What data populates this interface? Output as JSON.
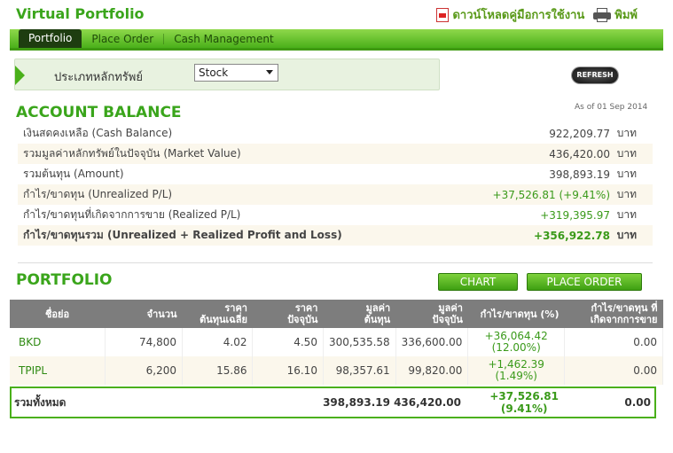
{
  "header": {
    "title": "Virtual Portfolio",
    "download_label": "ดาวน์โหลดคู่มือการใช้งาน",
    "print_label": "พิมพ์"
  },
  "tabs": [
    "Portfolio",
    "Place Order",
    "Cash Management"
  ],
  "filter": {
    "label": "ประเภทหลักทรัพย์",
    "selected": "Stock",
    "refresh_label": "REFRESH"
  },
  "account_balance": {
    "title": "ACCOUNT BALANCE",
    "as_of": "As of 01 Sep 2014",
    "unit": "บาท",
    "rows": [
      {
        "label": "เงินสดคงเหลือ (Cash Balance)",
        "value": "922,209.77"
      },
      {
        "label": "รวมมูลค่าหลักทรัพย์ในปัจจุบัน (Market Value)",
        "value": "436,420.00"
      },
      {
        "label": "รวมต้นทุน (Amount)",
        "value": "398,893.19"
      },
      {
        "label": "กำไร/ขาดทุน (Unrealized P/L)",
        "value": "+37,526.81 (+9.41%)"
      },
      {
        "label": "กำไร/ขาดทุนที่เกิดจากการขาย (Realized P/L)",
        "value": "+319,395.97"
      },
      {
        "label": "กำไร/ขาดทุนรวม (Unrealized + Realized Profit and Loss)",
        "value": "+356,922.78"
      }
    ]
  },
  "portfolio": {
    "title": "PORTFOLIO",
    "chart_button": "CHART",
    "place_order_button": "PLACE ORDER",
    "columns": [
      "ชื่อย่อ",
      "จำนวน",
      "ราคา\nต้นทุนเฉลี่ย",
      "ราคา\nปัจจุบัน",
      "มูลค่า\nต้นทุน",
      "มูลค่า\nปัจจุบัน",
      "กำไร/ขาดทุน (%)",
      "กำไร/ขาดทุน ที่\nเกิดจากการขาย"
    ],
    "rows": [
      {
        "name": "BKD",
        "qty": "74,800",
        "avg_cost": "4.02",
        "price": "4.50",
        "cost_value": "300,535.58",
        "market_value": "336,600.00",
        "pl": "+36,064.42",
        "pl_pct": "(12.00%)",
        "realized": "0.00"
      },
      {
        "name": "TPIPL",
        "qty": "6,200",
        "avg_cost": "15.86",
        "price": "16.10",
        "cost_value": "98,357.61",
        "market_value": "99,820.00",
        "pl": "+1,462.39",
        "pl_pct": "(1.49%)",
        "realized": "0.00"
      }
    ],
    "total": {
      "label": "รวมทั้งหมด",
      "cost_value": "398,893.19",
      "market_value": "436,420.00",
      "pl": "+37,526.81",
      "pl_pct": "(9.41%)",
      "realized": "0.00"
    }
  }
}
